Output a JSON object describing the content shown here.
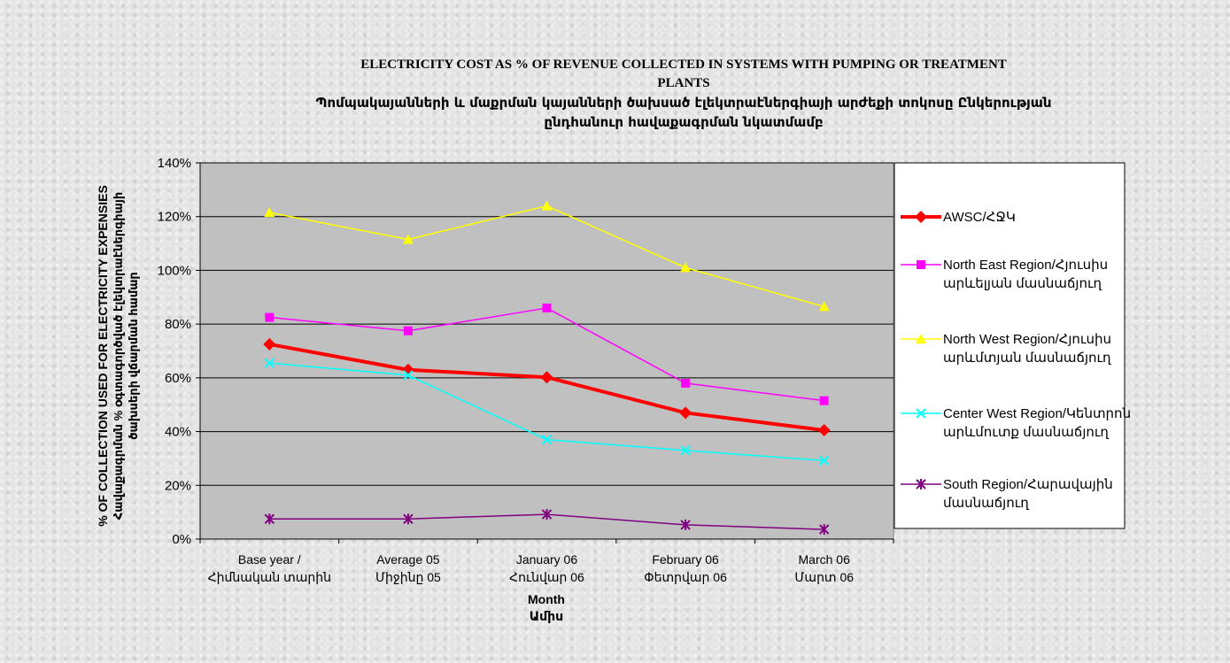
{
  "chart_data": {
    "type": "line",
    "title_lines": [
      "ELECTRICITY COST AS % OF REVENUE COLLECTED IN SYSTEMS WITH PUMPING OR TREATMENT",
      "PLANTS"
    ],
    "subtitle_lines": [
      "Պոմպակայանների և մաքրման կայանների ծախսած էլեկտրաէներգիայի արժեքի տոկոսը Ընկերության",
      "ընդհանուր հավաքագրման նկատմամբ"
    ],
    "ylabel_lines": [
      "% OF COLLECTION USED FOR ELECTRICITY EXPENSIES",
      "Հավաքագրման % օգտագործված էլեկտրաէներգիայի",
      "ծախսերի վճարման համար"
    ],
    "xlabel_lines": [
      "Month",
      "Ամիս"
    ],
    "categories": [
      [
        "Base year /",
        "Հիմնական տարին"
      ],
      [
        "Average 05",
        "Միջինը 05"
      ],
      [
        "January 06",
        "Հունվար 06"
      ],
      [
        "February 06",
        "Փետրվար 06"
      ],
      [
        "March 06",
        "Մարտ 06"
      ]
    ],
    "ylim": [
      0,
      140
    ],
    "yticks": [
      "0%",
      "20%",
      "40%",
      "60%",
      "80%",
      "100%",
      "120%",
      "140%"
    ],
    "grid": true,
    "legend_position": "right",
    "plot_background": "#c0c0c0",
    "series": [
      {
        "name_lines": [
          "AWSC/ՀՋԿ"
        ],
        "values": [
          72.5,
          63,
          60.2,
          47,
          40.5
        ],
        "color": "#ff0000",
        "marker": "diamond",
        "width": 4
      },
      {
        "name_lines": [
          "North East Region/Հյուսիս",
          "արևելյան մասնաճյուղ"
        ],
        "values": [
          82.5,
          77.5,
          86,
          58,
          51.5
        ],
        "color": "#ff00ff",
        "marker": "square",
        "width": 1.5
      },
      {
        "name_lines": [
          "North West Region/Հյուսիս",
          "արևմտյան մասնաճյուղ"
        ],
        "values": [
          121.5,
          111.5,
          124,
          101,
          86.5
        ],
        "color": "#ffff00",
        "marker": "triangle",
        "width": 1.5
      },
      {
        "name_lines": [
          "Center West Region/Կենտրոն",
          "արևմուտք մասնաճյուղ"
        ],
        "values": [
          65.5,
          61,
          37,
          33,
          29.2
        ],
        "color": "#00ffff",
        "marker": "x",
        "width": 1.5
      },
      {
        "name_lines": [
          "South Region/Հարավային",
          "մասնաճյուղ"
        ],
        "values": [
          7.5,
          7.5,
          9.2,
          5.3,
          3.6
        ],
        "color": "#800080",
        "marker": "star",
        "width": 1.5
      }
    ]
  }
}
